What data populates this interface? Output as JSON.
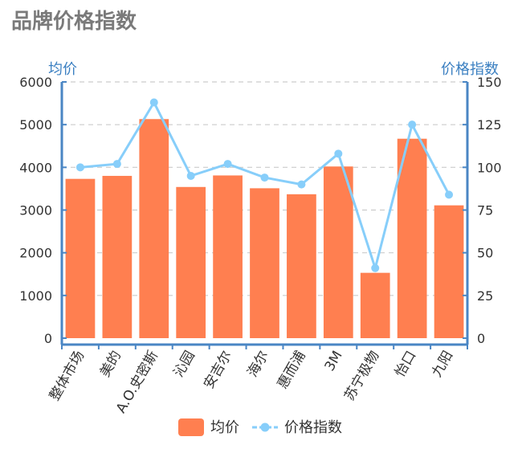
{
  "colors": {
    "bar": "#ff7f50",
    "line": "#87cefa",
    "axis": "#4a86c4",
    "grid": "#cccccc"
  },
  "chart_data": {
    "type": "bar",
    "title": "品牌价格指数",
    "categories": [
      "整体市场",
      "美的",
      "A.O.史密斯",
      "沁园",
      "安吉尔",
      "海尔",
      "惠而浦",
      "3M",
      "苏宁极物",
      "怡口",
      "九阳"
    ],
    "y_left": {
      "label": "均价",
      "min": 0,
      "max": 6000,
      "ticks": [
        "0",
        "1000",
        "2000",
        "3000",
        "4000",
        "5000",
        "6000"
      ]
    },
    "y_right": {
      "label": "价格指数",
      "min": 0,
      "max": 150,
      "ticks": [
        "0",
        "25",
        "50",
        "75",
        "100",
        "125",
        "150"
      ]
    },
    "series": [
      {
        "name": "均价",
        "type": "bar",
        "axis": "left",
        "color": "#ff7f50",
        "values": [
          3730,
          3800,
          5130,
          3540,
          3810,
          3510,
          3370,
          4020,
          1530,
          4670,
          3110
        ]
      },
      {
        "name": "价格指数",
        "type": "line",
        "axis": "right",
        "color": "#87cefa",
        "values": [
          100,
          102,
          138,
          95,
          102,
          94,
          90,
          108,
          41,
          125,
          84
        ]
      }
    ],
    "grid": true,
    "legend": "bottom-center"
  }
}
